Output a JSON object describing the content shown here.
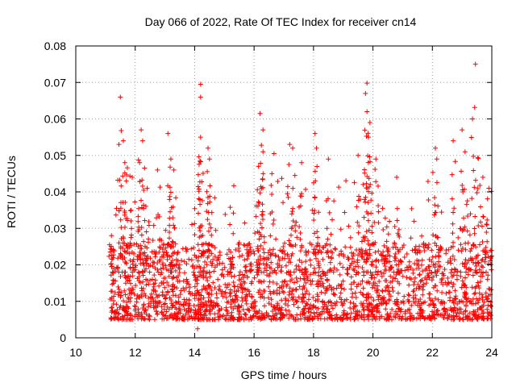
{
  "chart_data": {
    "type": "scatter",
    "title": "Day 066 of 2022, Rate Of TEC Index for receiver cn14",
    "xlabel": "GPS time / hours",
    "ylabel": "ROTI / TECUs",
    "xlim": [
      10,
      24
    ],
    "ylim": [
      0,
      0.08
    ],
    "xticks": [
      10,
      12,
      14,
      16,
      18,
      20,
      22,
      24
    ],
    "xtick_labels": [
      "10",
      "12",
      "14",
      "16",
      "18",
      "20",
      "22",
      "24"
    ],
    "yticks": [
      0,
      0.01,
      0.02,
      0.03,
      0.04,
      0.05,
      0.06,
      0.07,
      0.08
    ],
    "ytick_labels": [
      "0",
      "0.01",
      "0.02",
      "0.03",
      "0.04",
      "0.05",
      "0.06",
      "0.07",
      "0.08"
    ],
    "grid": true,
    "marker": "+",
    "color": "#ff0000",
    "series": [
      {
        "name": "ROTI",
        "x_range": [
          11.15,
          24.0
        ],
        "typical_range": [
          0.005,
          0.02
        ],
        "points": [
          {
            "x": 11.2,
            "y": 0.028
          },
          {
            "x": 11.5,
            "y": 0.066
          },
          {
            "x": 11.6,
            "y": 0.054
          },
          {
            "x": 11.65,
            "y": 0.048
          },
          {
            "x": 11.7,
            "y": 0.043
          },
          {
            "x": 11.9,
            "y": 0.044
          },
          {
            "x": 12.2,
            "y": 0.057
          },
          {
            "x": 12.25,
            "y": 0.054
          },
          {
            "x": 12.15,
            "y": 0.048
          },
          {
            "x": 12.4,
            "y": 0.041
          },
          {
            "x": 12.75,
            "y": 0.046
          },
          {
            "x": 13.1,
            "y": 0.056
          },
          {
            "x": 13.2,
            "y": 0.049
          },
          {
            "x": 13.3,
            "y": 0.046
          },
          {
            "x": 14.2,
            "y": 0.0695
          },
          {
            "x": 14.2,
            "y": 0.066
          },
          {
            "x": 14.2,
            "y": 0.055
          },
          {
            "x": 14.45,
            "y": 0.052
          },
          {
            "x": 14.5,
            "y": 0.049
          },
          {
            "x": 14.1,
            "y": 0.0025
          },
          {
            "x": 16.2,
            "y": 0.0615
          },
          {
            "x": 16.3,
            "y": 0.057
          },
          {
            "x": 16.3,
            "y": 0.051
          },
          {
            "x": 16.15,
            "y": 0.047
          },
          {
            "x": 16.6,
            "y": 0.045
          },
          {
            "x": 17.2,
            "y": 0.053
          },
          {
            "x": 17.3,
            "y": 0.052
          },
          {
            "x": 17.6,
            "y": 0.048
          },
          {
            "x": 18.05,
            "y": 0.056
          },
          {
            "x": 18.1,
            "y": 0.052
          },
          {
            "x": 18.5,
            "y": 0.049
          },
          {
            "x": 19.5,
            "y": 0.05
          },
          {
            "x": 19.8,
            "y": 0.0698
          },
          {
            "x": 19.75,
            "y": 0.067
          },
          {
            "x": 19.8,
            "y": 0.062
          },
          {
            "x": 19.9,
            "y": 0.059
          },
          {
            "x": 19.85,
            "y": 0.055
          },
          {
            "x": 20.1,
            "y": 0.049
          },
          {
            "x": 20.8,
            "y": 0.044
          },
          {
            "x": 22.1,
            "y": 0.052
          },
          {
            "x": 22.15,
            "y": 0.049
          },
          {
            "x": 22.7,
            "y": 0.054
          },
          {
            "x": 23.0,
            "y": 0.057
          },
          {
            "x": 23.1,
            "y": 0.051
          },
          {
            "x": 23.35,
            "y": 0.06
          },
          {
            "x": 23.45,
            "y": 0.075
          },
          {
            "x": 23.7,
            "y": 0.044
          },
          {
            "x": 23.9,
            "y": 0.041
          }
        ]
      }
    ]
  }
}
